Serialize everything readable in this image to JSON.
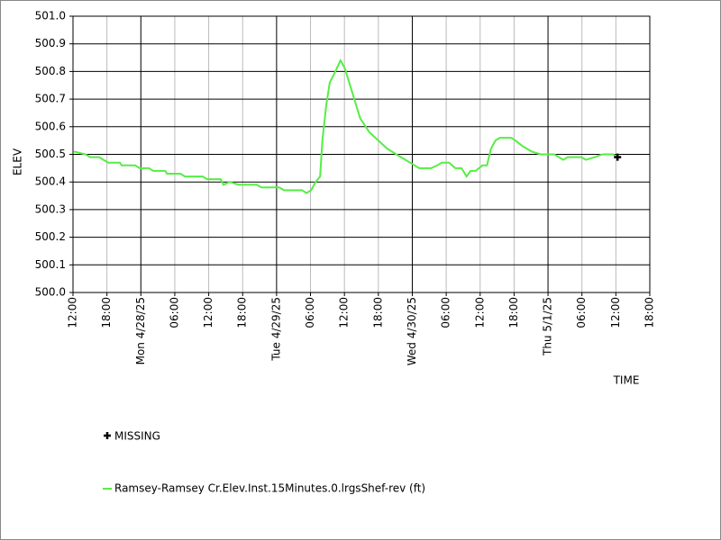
{
  "chart_data": {
    "type": "line",
    "ylabel": "ELEV",
    "xlabel": "TIME",
    "xlim": [
      0,
      102
    ],
    "ylim": [
      500.0,
      501.0
    ],
    "xticks": [
      {
        "value": 0,
        "label": "12:00"
      },
      {
        "value": 6,
        "label": "18:00"
      },
      {
        "value": 12,
        "label": "Mon 4/28/25"
      },
      {
        "value": 18,
        "label": "06:00"
      },
      {
        "value": 24,
        "label": "12:00"
      },
      {
        "value": 30,
        "label": "18:00"
      },
      {
        "value": 36,
        "label": "Tue 4/29/25"
      },
      {
        "value": 42,
        "label": "06:00"
      },
      {
        "value": 48,
        "label": "12:00"
      },
      {
        "value": 54,
        "label": "18:00"
      },
      {
        "value": 60,
        "label": "Wed 4/30/25"
      },
      {
        "value": 66,
        "label": "06:00"
      },
      {
        "value": 72,
        "label": "12:00"
      },
      {
        "value": 78,
        "label": "18:00"
      },
      {
        "value": 84,
        "label": "Thu 5/1/25"
      },
      {
        "value": 90,
        "label": "06:00"
      },
      {
        "value": 96,
        "label": "12:00"
      },
      {
        "value": 102,
        "label": "18:00"
      }
    ],
    "yticks": [
      {
        "value": 500.0,
        "label": "500.0"
      },
      500.1,
      500.2,
      500.3,
      500.4,
      500.5,
      500.6,
      500.7,
      500.8,
      500.9,
      {
        "value": 501.0,
        "label": "501.0"
      }
    ],
    "grid": true,
    "x": [
      0.16,
      2.23,
      3.03,
      4.62,
      6.22,
      8.29,
      8.61,
      11.0,
      11.8,
      13.4,
      14.2,
      16.3,
      16.6,
      19.0,
      19.8,
      22.95,
      23.7,
      26.1,
      26.6,
      27.7,
      29.3,
      32.5,
      33.3,
      36.5,
      37.3,
      40.5,
      41.3,
      42.1,
      42.9,
      43.7,
      44.1,
      44.8,
      45.4,
      46.4,
      47.3,
      48.1,
      49.3,
      50.8,
      52.4,
      54.0,
      55.6,
      58.0,
      59.6,
      61.2,
      63.3,
      64.4,
      65.2,
      66.5,
      67.6,
      68.7,
      69.6,
      70.3,
      71.2,
      72.4,
      73.2,
      73.9,
      74.7,
      75.5,
      77.5,
      78.2,
      79.5,
      81.1,
      82.7,
      85.1,
      86.7,
      87.5,
      89.9,
      90.7,
      92.3,
      93.6,
      95.5,
      96.3
    ],
    "series": [
      {
        "name": "Ramsey-Ramsey Cr.Elev.Inst.15Minutes.0.lrgsShef-rev (ft)",
        "color": "#55ee44",
        "values": [
          500.51,
          500.5,
          500.49,
          500.49,
          500.47,
          500.47,
          500.46,
          500.46,
          500.45,
          500.45,
          500.44,
          500.44,
          500.43,
          500.43,
          500.42,
          500.42,
          500.41,
          500.41,
          500.39,
          500.4,
          500.39,
          500.39,
          500.38,
          500.38,
          500.37,
          500.37,
          500.36,
          500.37,
          500.4,
          500.42,
          500.55,
          500.68,
          500.76,
          500.8,
          500.84,
          500.81,
          500.73,
          500.63,
          500.58,
          500.55,
          500.52,
          500.49,
          500.47,
          500.45,
          500.45,
          500.46,
          500.47,
          500.47,
          500.45,
          500.45,
          500.42,
          500.44,
          500.44,
          500.46,
          500.46,
          500.52,
          500.55,
          500.56,
          500.56,
          500.55,
          500.53,
          500.51,
          500.5,
          500.5,
          500.48,
          500.49,
          500.49,
          500.48,
          500.49,
          500.5,
          500.5,
          500.49
        ]
      }
    ],
    "missing": {
      "name": "MISSING",
      "color": "#000000",
      "x": [
        96.3
      ],
      "values": [
        500.49
      ]
    }
  }
}
